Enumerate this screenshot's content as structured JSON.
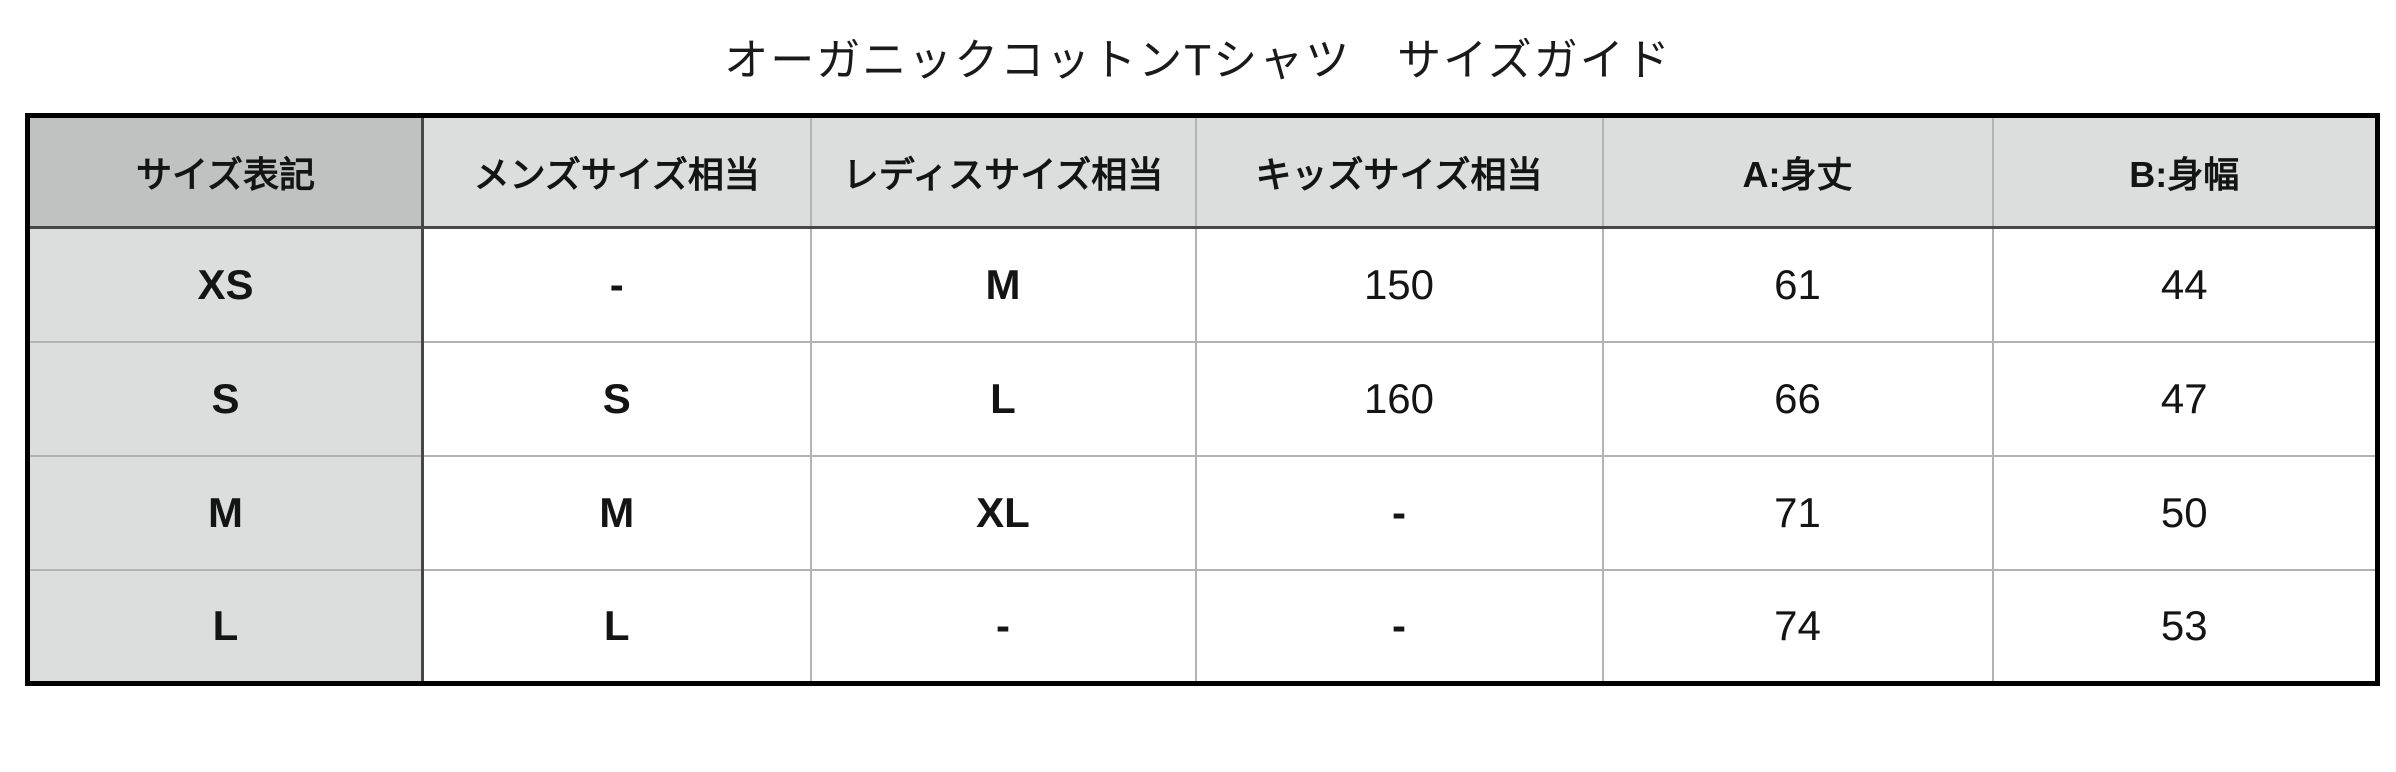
{
  "page": {
    "title": "オーガニックコットンTシャツ　サイズガイド"
  },
  "chart_data": {
    "type": "table",
    "title": "オーガニックコットンTシャツ　サイズガイド",
    "columns": [
      "サイズ表記",
      "メンズサイズ相当",
      "レディスサイズ相当",
      "キッズサイズ相当",
      "A:身丈",
      "B:身幅"
    ],
    "rows": [
      [
        "XS",
        "-",
        "M",
        "150",
        "61",
        "44"
      ],
      [
        "S",
        "S",
        "L",
        "160",
        "66",
        "47"
      ],
      [
        "M",
        "M",
        "XL",
        "-",
        "71",
        "50"
      ],
      [
        "L",
        "L",
        "-",
        "-",
        "74",
        "53"
      ]
    ],
    "layout_hints": {
      "header_row_shaded": true,
      "first_column_shaded": true,
      "grid": "on"
    }
  },
  "colors": {
    "outer_border": "#000000",
    "strong_border": "#474747",
    "grid_border": "#b3b3b3",
    "header_first_bg": "#c0c1c1",
    "header_bg": "#dcdede",
    "label_bg": "#dcdddd",
    "cell_bg": "#ffffff",
    "text": "#141414"
  }
}
